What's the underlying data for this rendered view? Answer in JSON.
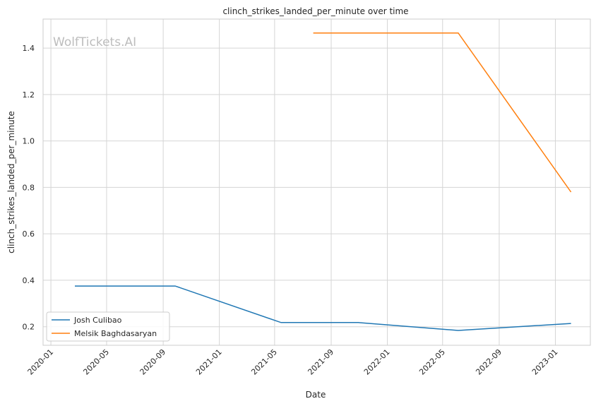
{
  "chart_data": {
    "type": "line",
    "title": "clinch_strikes_landed_per_minute over time",
    "xlabel": "Date",
    "ylabel": "clinch_strikes_landed_per_minute",
    "watermark": "WolfTickets.AI",
    "xlim": [
      "2019-12-15",
      "2023-03-18"
    ],
    "ylim": [
      0.12,
      1.525
    ],
    "x_ticks": [
      "2020-01",
      "2020-05",
      "2020-09",
      "2021-01",
      "2021-05",
      "2021-09",
      "2022-01",
      "2022-05",
      "2022-09",
      "2023-01"
    ],
    "y_ticks": [
      0.2,
      0.4,
      0.6,
      0.8,
      1.0,
      1.2,
      1.4
    ],
    "y_tick_labels": [
      "0.2",
      "0.4",
      "0.6",
      "0.8",
      "1.0",
      "1.2",
      "1.4"
    ],
    "grid": true,
    "legend_position": "lower-left",
    "series": [
      {
        "name": "Josh Culibao",
        "color": "#1f77b4",
        "x": [
          "2020-02-22",
          "2020-09-27",
          "2021-05-15",
          "2021-10-30",
          "2022-06-04",
          "2023-02-04"
        ],
        "y": [
          0.375,
          0.375,
          0.218,
          0.218,
          0.184,
          0.214
        ]
      },
      {
        "name": "Melsik Baghdasaryan",
        "color": "#ff7f0e",
        "x": [
          "2021-07-24",
          "2022-06-04",
          "2023-02-04"
        ],
        "y": [
          1.465,
          1.465,
          0.78
        ]
      }
    ]
  }
}
